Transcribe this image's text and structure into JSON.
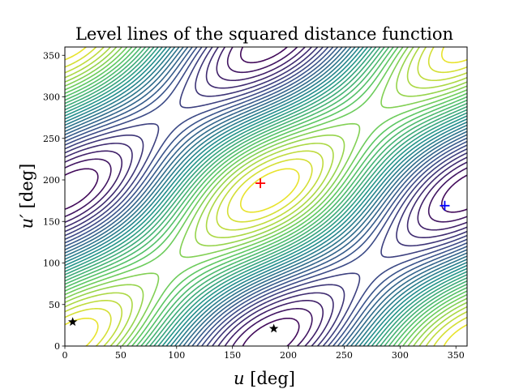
{
  "chart_data": {
    "type": "contour",
    "title": "Level lines of the squared distance function",
    "xlabel_var": "u",
    "xlabel_unit": "[deg]",
    "ylabel_var": "u′",
    "ylabel_unit": "[deg]",
    "xlim": [
      0,
      360
    ],
    "ylim": [
      0,
      360
    ],
    "xticks": [
      0,
      50,
      100,
      150,
      200,
      250,
      300,
      350
    ],
    "yticks": [
      0,
      50,
      100,
      150,
      200,
      250,
      300,
      350
    ],
    "grid": false,
    "colormap": "viridis",
    "maximum": {
      "x": 175,
      "y": 196,
      "marker": "+",
      "color": "#ff0000"
    },
    "minimum": {
      "x": 340,
      "y": 169,
      "marker": "+",
      "color": "#0000ff"
    },
    "saddles": [
      {
        "x": 7,
        "y": 29,
        "marker": "star",
        "color": "#000000"
      },
      {
        "x": 187,
        "y": 21,
        "marker": "star",
        "color": "#000000"
      }
    ]
  }
}
